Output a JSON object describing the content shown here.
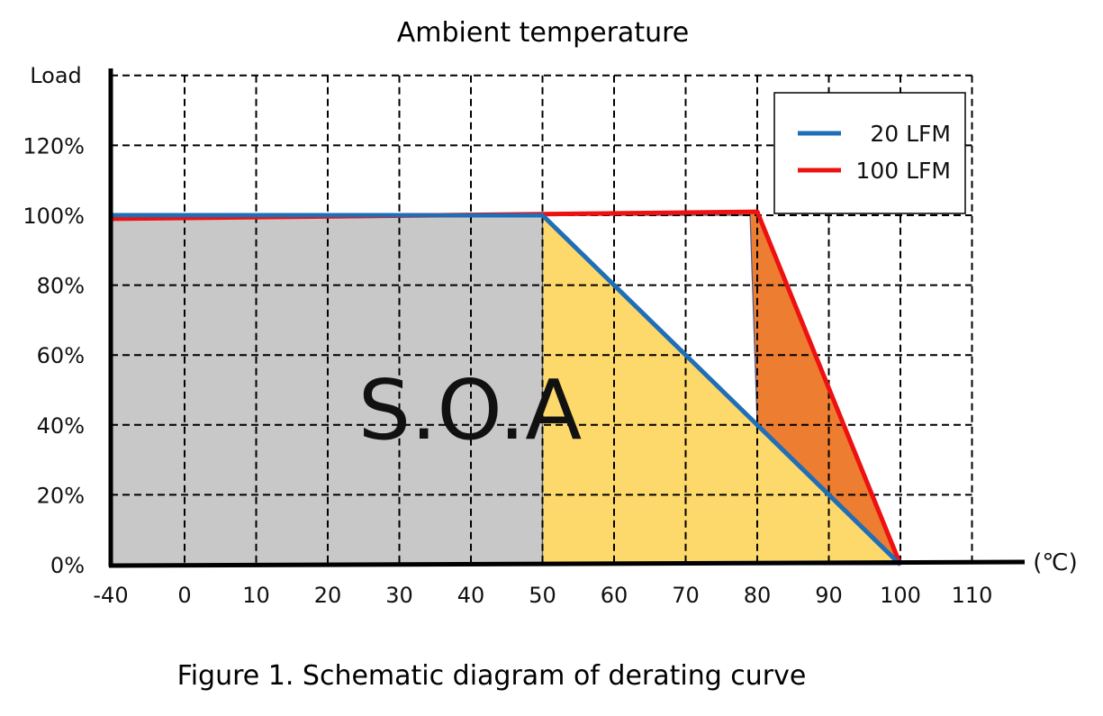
{
  "chart_data": {
    "type": "line",
    "title": "Ambient temperature",
    "ylabel": "Load",
    "xlabel": "(℃)",
    "caption": "Figure 1. Schematic diagram of derating curve",
    "annotation": "S.O.A",
    "x_ticks": [
      -40,
      0,
      10,
      20,
      30,
      40,
      50,
      60,
      70,
      80,
      90,
      100,
      110
    ],
    "x_tick_labels": [
      "-40",
      "0",
      "10",
      "20",
      "30",
      "40",
      "50",
      "60",
      "70",
      "80",
      "90",
      "100",
      "110"
    ],
    "y_ticks": [
      0,
      20,
      40,
      60,
      80,
      100,
      120
    ],
    "y_tick_labels": [
      "0%",
      "20%",
      "40%",
      "60%",
      "80%",
      "100%",
      "120%"
    ],
    "xlim": [
      -40,
      110
    ],
    "ylim": [
      0,
      140
    ],
    "grid": true,
    "legend_position": "top-right",
    "series": [
      {
        "name": "20 LFM",
        "color": "#1f6fb8",
        "x": [
          -40,
          50,
          100
        ],
        "y": [
          100,
          100,
          0
        ]
      },
      {
        "name": "100 LFM",
        "color": "#ee1111",
        "x": [
          -40,
          80,
          100
        ],
        "y": [
          99,
          101,
          0
        ]
      }
    ],
    "regions": [
      {
        "label": "gray-region",
        "color": "#c8c8c8",
        "x": [
          -40,
          50,
          50,
          -40
        ],
        "y": [
          100,
          100,
          0,
          0
        ]
      },
      {
        "label": "yellow-region",
        "color": "#fdd86b",
        "x": [
          50,
          100,
          50
        ],
        "y": [
          100,
          0,
          0
        ]
      },
      {
        "label": "orange-region",
        "color": "#ed7d31",
        "x": [
          50,
          80,
          100,
          80,
          79
        ],
        "y": [
          100,
          101,
          0,
          40,
          100
        ]
      }
    ]
  }
}
